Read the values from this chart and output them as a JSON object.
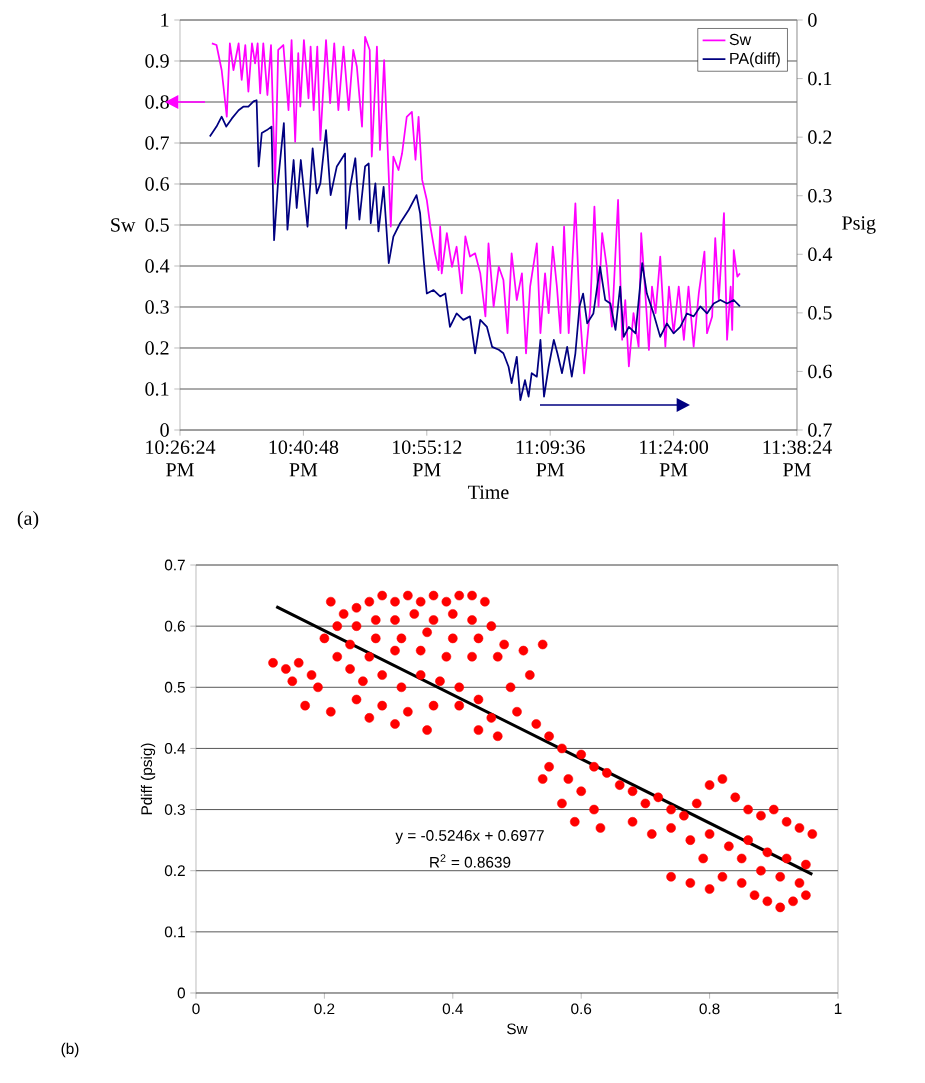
{
  "chart_data": [
    {
      "type": "line",
      "xlabel": "Time",
      "ylabel": "Sw",
      "y2label": "Psig",
      "xlim": [
        22.44,
        23.64
      ],
      "xticks": [
        {
          "value": 22.44,
          "label": "10:26:24 PM"
        },
        {
          "value": 22.68,
          "label": "10:40:48 PM"
        },
        {
          "value": 22.92,
          "label": "10:55:12 PM"
        },
        {
          "value": 23.16,
          "label": "11:09:36 PM"
        },
        {
          "value": 23.4,
          "label": "11:24:00 PM"
        },
        {
          "value": 23.64,
          "label": "11:38:24 PM"
        }
      ],
      "ylim": [
        0,
        1
      ],
      "yticks": [
        0,
        0.1,
        0.2,
        0.3,
        0.4,
        0.5,
        0.6,
        0.7,
        0.8,
        0.9,
        1
      ],
      "y2lim": [
        0.7,
        0
      ],
      "y2ticks": [
        0,
        0.1,
        0.2,
        0.3,
        0.4,
        0.5,
        0.6,
        0.7
      ],
      "grid": "y",
      "legend": "top right",
      "line_style": "solid",
      "annotations": [
        "(a)"
      ],
      "series": [
        {
          "name": "Sw",
          "color": "#ff00ff",
          "x": [
            22.502,
            22.511,
            22.521,
            22.531,
            22.537,
            22.544,
            22.554,
            22.56,
            22.567,
            22.573,
            22.58,
            22.586,
            22.591,
            22.596,
            22.602,
            22.61,
            22.617,
            22.625,
            22.631,
            22.641,
            22.651,
            22.657,
            22.664,
            22.67,
            22.674,
            22.681,
            22.69,
            22.694,
            22.7,
            22.707,
            22.713,
            22.724,
            22.732,
            22.74,
            22.748,
            22.758,
            22.768,
            22.777,
            22.784,
            22.794,
            22.8,
            22.809,
            22.813,
            22.823,
            22.829,
            22.837,
            22.85,
            22.855,
            22.865,
            22.872,
            22.881,
            22.891,
            22.898,
            22.904,
            22.911,
            22.92,
            22.927,
            22.936,
            22.943,
            22.946,
            22.949,
            22.959,
            22.969,
            22.978,
            22.988,
            22.995,
            23.004,
            23.014,
            23.024,
            23.034,
            23.04,
            23.05,
            23.06,
            23.069,
            23.077,
            23.085,
            23.095,
            23.105,
            23.113,
            23.121,
            23.134,
            23.141,
            23.15,
            23.157,
            23.165,
            23.173,
            23.18,
            23.187,
            23.196,
            23.209,
            23.217,
            23.226,
            23.238,
            23.246,
            23.254,
            23.261,
            23.27,
            23.28,
            23.292,
            23.3,
            23.306,
            23.313,
            23.322,
            23.332,
            23.337,
            23.345,
            23.352,
            23.358,
            23.365,
            23.374,
            23.384,
            23.391,
            23.4,
            23.41,
            23.42,
            23.429,
            23.439,
            23.449,
            23.46,
            23.465,
            23.475,
            23.481,
            23.488,
            23.498,
            23.504,
            23.511,
            23.514,
            23.517,
            23.524,
            23.529
          ],
          "values": [
            0.943,
            0.939,
            0.878,
            0.764,
            0.943,
            0.878,
            0.943,
            0.854,
            0.939,
            0.825,
            0.943,
            0.894,
            0.943,
            0.821,
            0.943,
            0.817,
            0.939,
            0.602,
            0.927,
            0.939,
            0.78,
            0.951,
            0.703,
            0.919,
            0.789,
            0.951,
            0.809,
            0.935,
            0.78,
            0.935,
            0.707,
            0.951,
            0.797,
            0.943,
            0.78,
            0.935,
            0.78,
            0.927,
            0.886,
            0.74,
            0.959,
            0.927,
            0.667,
            0.935,
            0.683,
            0.902,
            0.496,
            0.667,
            0.634,
            0.675,
            0.764,
            0.776,
            0.659,
            0.764,
            0.61,
            0.561,
            0.496,
            0.431,
            0.39,
            0.496,
            0.382,
            0.48,
            0.398,
            0.447,
            0.333,
            0.472,
            0.423,
            0.431,
            0.382,
            0.277,
            0.455,
            0.301,
            0.398,
            0.366,
            0.236,
            0.431,
            0.317,
            0.382,
            0.187,
            0.35,
            0.455,
            0.236,
            0.382,
            0.285,
            0.447,
            0.35,
            0.236,
            0.496,
            0.236,
            0.553,
            0.301,
            0.138,
            0.301,
            0.545,
            0.301,
            0.48,
            0.398,
            0.252,
            0.561,
            0.22,
            0.317,
            0.155,
            0.285,
            0.203,
            0.48,
            0.333,
            0.195,
            0.35,
            0.285,
            0.423,
            0.203,
            0.35,
            0.236,
            0.35,
            0.22,
            0.35,
            0.203,
            0.333,
            0.435,
            0.236,
            0.277,
            0.468,
            0.317,
            0.529,
            0.22,
            0.35,
            0.244,
            0.439,
            0.374,
            0.382
          ]
        },
        {
          "name": "PA(diff)",
          "color": "#000080",
          "axis": "y2",
          "x": [
            22.498,
            22.511,
            22.521,
            22.53,
            22.541,
            22.554,
            22.563,
            22.573,
            22.583,
            22.589,
            22.593,
            22.599,
            22.609,
            22.618,
            22.623,
            22.631,
            22.642,
            22.649,
            22.661,
            22.667,
            22.675,
            22.688,
            22.698,
            22.706,
            22.713,
            22.724,
            22.733,
            22.745,
            22.761,
            22.763,
            22.771,
            22.781,
            22.789,
            22.8,
            22.807,
            22.811,
            22.82,
            22.826,
            22.836,
            22.846,
            22.855,
            22.868,
            22.885,
            22.9,
            22.907,
            22.914,
            22.92,
            22.933,
            22.946,
            22.956,
            22.965,
            22.978,
            22.991,
            23.004,
            23.014,
            23.024,
            23.037,
            23.047,
            23.06,
            23.069,
            23.079,
            23.085,
            23.095,
            23.102,
            23.111,
            23.118,
            23.124,
            23.134,
            23.141,
            23.148,
            23.157,
            23.167,
            23.174,
            23.183,
            23.193,
            23.202,
            23.209,
            23.217,
            23.224,
            23.232,
            23.244,
            23.257,
            23.267,
            23.277,
            23.287,
            23.296,
            23.303,
            23.313,
            23.326,
            23.339,
            23.348,
            23.361,
            23.374,
            23.387,
            23.4,
            23.413,
            23.426,
            23.439,
            23.452,
            23.465,
            23.478,
            23.491,
            23.504,
            23.517,
            23.529
          ],
          "values": [
            0.199,
            0.182,
            0.165,
            0.182,
            0.168,
            0.154,
            0.148,
            0.148,
            0.139,
            0.137,
            0.25,
            0.193,
            0.188,
            0.182,
            0.376,
            0.273,
            0.176,
            0.358,
            0.239,
            0.321,
            0.239,
            0.353,
            0.219,
            0.296,
            0.279,
            0.188,
            0.299,
            0.25,
            0.228,
            0.356,
            0.285,
            0.236,
            0.341,
            0.25,
            0.245,
            0.347,
            0.279,
            0.361,
            0.285,
            0.415,
            0.37,
            0.347,
            0.324,
            0.299,
            0.33,
            0.41,
            0.467,
            0.461,
            0.472,
            0.467,
            0.524,
            0.501,
            0.512,
            0.506,
            0.569,
            0.512,
            0.524,
            0.558,
            0.563,
            0.569,
            0.592,
            0.62,
            0.575,
            0.649,
            0.615,
            0.643,
            0.603,
            0.609,
            0.546,
            0.643,
            0.592,
            0.546,
            0.569,
            0.603,
            0.558,
            0.609,
            0.569,
            0.489,
            0.467,
            0.518,
            0.501,
            0.421,
            0.478,
            0.484,
            0.529,
            0.455,
            0.541,
            0.524,
            0.535,
            0.415,
            0.467,
            0.501,
            0.541,
            0.518,
            0.535,
            0.524,
            0.501,
            0.506,
            0.489,
            0.501,
            0.484,
            0.478,
            0.484,
            0.478,
            0.489
          ]
        }
      ]
    },
    {
      "type": "scatter",
      "xlabel": "Sw",
      "ylabel": "Pdiff (psig)",
      "xlim": [
        0,
        1
      ],
      "xticks": [
        0,
        0.2,
        0.4,
        0.6,
        0.8,
        1
      ],
      "ylim": [
        0,
        0.7
      ],
      "yticks": [
        0,
        0.1,
        0.2,
        0.3,
        0.4,
        0.5,
        0.6,
        0.7
      ],
      "grid": "y",
      "annotations": [
        "y = -0.5246x + 0.6977",
        "R$^{2}$ = 0.8639",
        "(b)"
      ],
      "series": [
        {
          "type": "scatter",
          "color": "#ff0000",
          "marker": "circle",
          "x": [
            0.21,
            0.23,
            0.25,
            0.27,
            0.29,
            0.31,
            0.33,
            0.35,
            0.37,
            0.39,
            0.41,
            0.43,
            0.45,
            0.22,
            0.25,
            0.28,
            0.31,
            0.34,
            0.37,
            0.4,
            0.43,
            0.46,
            0.2,
            0.24,
            0.28,
            0.32,
            0.36,
            0.4,
            0.44,
            0.48,
            0.22,
            0.27,
            0.31,
            0.35,
            0.39,
            0.43,
            0.47,
            0.51,
            0.54,
            0.12,
            0.14,
            0.16,
            0.18,
            0.15,
            0.19,
            0.17,
            0.21,
            0.24,
            0.26,
            0.29,
            0.32,
            0.35,
            0.38,
            0.41,
            0.25,
            0.29,
            0.33,
            0.37,
            0.41,
            0.44,
            0.27,
            0.31,
            0.36,
            0.46,
            0.49,
            0.52,
            0.44,
            0.47,
            0.5,
            0.53,
            0.55,
            0.57,
            0.55,
            0.58,
            0.6,
            0.62,
            0.64,
            0.6,
            0.57,
            0.62,
            0.54,
            0.66,
            0.59,
            0.63,
            0.68,
            0.7,
            0.72,
            0.74,
            0.76,
            0.78,
            0.8,
            0.82,
            0.84,
            0.86,
            0.88,
            0.9,
            0.92,
            0.94,
            0.96,
            0.68,
            0.71,
            0.74,
            0.77,
            0.8,
            0.83,
            0.86,
            0.89,
            0.92,
            0.95,
            0.74,
            0.77,
            0.8,
            0.82,
            0.85,
            0.87,
            0.89,
            0.91,
            0.93,
            0.95,
            0.88,
            0.91,
            0.94,
            0.85,
            0.79
          ],
          "values": [
            0.64,
            0.62,
            0.63,
            0.64,
            0.65,
            0.64,
            0.65,
            0.64,
            0.65,
            0.64,
            0.65,
            0.65,
            0.64,
            0.6,
            0.6,
            0.61,
            0.61,
            0.62,
            0.61,
            0.62,
            0.61,
            0.6,
            0.58,
            0.57,
            0.58,
            0.58,
            0.59,
            0.58,
            0.58,
            0.57,
            0.55,
            0.55,
            0.56,
            0.56,
            0.55,
            0.55,
            0.55,
            0.56,
            0.57,
            0.54,
            0.53,
            0.54,
            0.52,
            0.51,
            0.5,
            0.47,
            0.46,
            0.53,
            0.51,
            0.52,
            0.5,
            0.52,
            0.51,
            0.5,
            0.48,
            0.47,
            0.46,
            0.47,
            0.47,
            0.48,
            0.45,
            0.44,
            0.43,
            0.45,
            0.5,
            0.52,
            0.43,
            0.42,
            0.46,
            0.44,
            0.42,
            0.4,
            0.37,
            0.35,
            0.39,
            0.37,
            0.36,
            0.33,
            0.31,
            0.3,
            0.35,
            0.34,
            0.28,
            0.27,
            0.33,
            0.31,
            0.32,
            0.3,
            0.29,
            0.31,
            0.34,
            0.35,
            0.32,
            0.3,
            0.29,
            0.3,
            0.28,
            0.27,
            0.26,
            0.28,
            0.26,
            0.27,
            0.25,
            0.26,
            0.24,
            0.25,
            0.23,
            0.22,
            0.21,
            0.19,
            0.18,
            0.17,
            0.19,
            0.18,
            0.16,
            0.15,
            0.14,
            0.15,
            0.16,
            0.2,
            0.19,
            0.18,
            0.22,
            0.22
          ]
        },
        {
          "type": "line",
          "color": "#000000",
          "marker": "none",
          "x": [
            0.125,
            0.96
          ],
          "values": [
            0.632,
            0.194
          ]
        }
      ]
    }
  ]
}
